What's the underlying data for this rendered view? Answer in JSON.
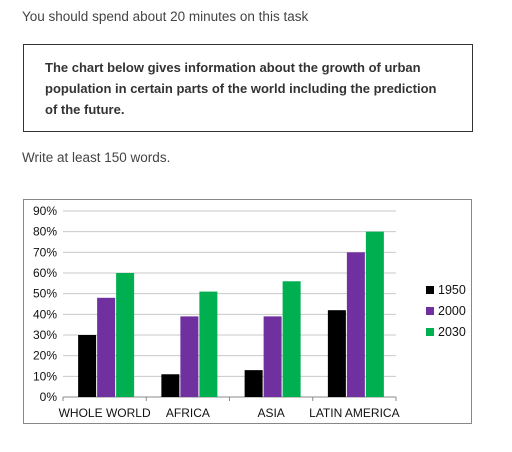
{
  "instruction": "You should spend about 20 minutes on this task",
  "task_prompt": "The chart below gives information about the growth of urban population in certain parts of the world including the prediction of the future.",
  "word_requirement": "Write at least 150 words.",
  "chart_data": {
    "type": "bar",
    "title": "",
    "xlabel": "",
    "ylabel": "",
    "categories": [
      "WHOLE WORLD",
      "AFRICA",
      "ASIA",
      "LATIN AMERICA"
    ],
    "series": [
      {
        "name": "1950",
        "color": "#000000",
        "values": [
          30,
          11,
          13,
          42
        ]
      },
      {
        "name": "2000",
        "color": "#7030a0",
        "values": [
          48,
          39,
          39,
          70
        ]
      },
      {
        "name": "2030",
        "color": "#00b050",
        "values": [
          60,
          51,
          56,
          80
        ]
      }
    ],
    "ylim": [
      0,
      90
    ],
    "yticks": [
      "0%",
      "10%",
      "20%",
      "30%",
      "40%",
      "50%",
      "60%",
      "70%",
      "80%",
      "90%"
    ],
    "grid": true,
    "legend_position": "right"
  }
}
